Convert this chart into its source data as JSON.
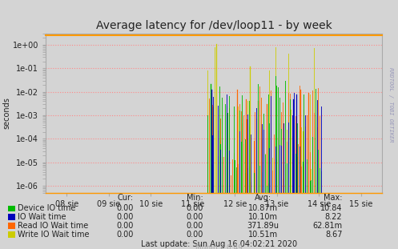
{
  "title": "Average latency for /dev/loop11 - by week",
  "ylabel": "seconds",
  "background_color": "#d4d4d4",
  "plot_bg_color": "#d4d4d4",
  "grid_color": "#ff8888",
  "border_top_color": "#ff9900",
  "border_side_color": "#aaaaaa",
  "x_ticks_labels": [
    "08 sie",
    "09 sie",
    "10 sie",
    "11 sie",
    "12 sie",
    "13 sie",
    "14 sie",
    "15 sie"
  ],
  "x_ticks_pos": [
    0,
    1,
    2,
    3,
    4,
    5,
    6,
    7
  ],
  "series_colors": [
    "#00bb00",
    "#0000bb",
    "#ff6600",
    "#cccc00"
  ],
  "legend_rows": [
    {
      "label": "Device IO time",
      "color": "#00bb00",
      "cur": "0.00",
      "min": "0.00",
      "avg": "10.87m",
      "max": "10.84"
    },
    {
      "label": "IO Wait time",
      "color": "#0000bb",
      "cur": "0.00",
      "min": "0.00",
      "avg": "10.10m",
      "max": "8.22"
    },
    {
      "label": "Read IO Wait time",
      "color": "#ff6600",
      "cur": "0.00",
      "min": "0.00",
      "avg": "371.89u",
      "max": "62.81m"
    },
    {
      "label": "Write IO Wait time",
      "color": "#cccc00",
      "cur": "0.00",
      "min": "0.00",
      "avg": "10.51m",
      "max": "8.67"
    }
  ],
  "last_update": "Last update: Sun Aug 16 04:02:21 2020",
  "munin_version": "Munin 2.0.49",
  "rrdtool_text": "RRDTOOL / TOBI OETIKER",
  "title_fontsize": 10,
  "axis_fontsize": 7,
  "legend_fontsize": 7
}
